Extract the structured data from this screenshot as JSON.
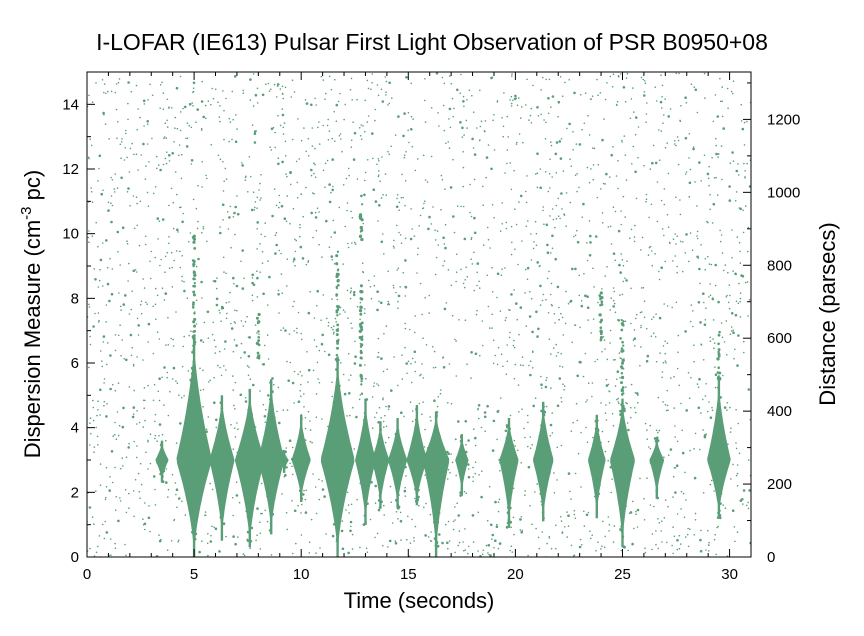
{
  "chart_data": {
    "type": "scatter",
    "title": "I-LOFAR (IE613) Pulsar First Light Observation of PSR B0950+08",
    "xlabel": "Time (seconds)",
    "ylabel_main": "Dispersion Measure (cm",
    "ylabel_sup": "-3",
    "ylabel_tail": " pc)",
    "y2label": "Distance (parsecs)",
    "xlim": [
      0,
      31
    ],
    "ylim": [
      0,
      15
    ],
    "y2lim": [
      0,
      1330
    ],
    "x_ticks": [
      "0",
      "5",
      "10",
      "15",
      "20",
      "25",
      "30"
    ],
    "y_ticks": [
      "0",
      "2",
      "4",
      "6",
      "8",
      "10",
      "12",
      "14"
    ],
    "y2_ticks": [
      "0",
      "200",
      "400",
      "600",
      "800",
      "1000",
      "1200"
    ],
    "grid": false,
    "marker_color": "#5a9e78",
    "series": [
      {
        "kind": "pulse_detections",
        "center_dm": 3.0,
        "pulses": [
          {
            "t": 3.5,
            "dm_lo": 2.3,
            "dm_hi": 3.6,
            "strength": 0.25
          },
          {
            "t": 5.0,
            "dm_lo": 0.0,
            "dm_hi": 6.8,
            "strength": 1.0
          },
          {
            "t": 6.3,
            "dm_lo": 0.5,
            "dm_hi": 5.0,
            "strength": 0.65
          },
          {
            "t": 7.6,
            "dm_lo": 0.3,
            "dm_hi": 5.2,
            "strength": 0.8
          },
          {
            "t": 8.6,
            "dm_lo": 0.7,
            "dm_hi": 5.5,
            "strength": 0.7
          },
          {
            "t": 9.2,
            "dm_lo": 2.6,
            "dm_hi": 3.3,
            "strength": 0.12
          },
          {
            "t": 10.0,
            "dm_lo": 1.7,
            "dm_hi": 4.4,
            "strength": 0.45
          },
          {
            "t": 11.7,
            "dm_lo": 0.0,
            "dm_hi": 6.2,
            "strength": 0.95
          },
          {
            "t": 13.0,
            "dm_lo": 1.0,
            "dm_hi": 4.9,
            "strength": 0.5
          },
          {
            "t": 13.7,
            "dm_lo": 1.5,
            "dm_hi": 4.2,
            "strength": 0.4
          },
          {
            "t": 14.5,
            "dm_lo": 1.5,
            "dm_hi": 4.3,
            "strength": 0.45
          },
          {
            "t": 15.4,
            "dm_lo": 1.6,
            "dm_hi": 4.7,
            "strength": 0.5
          },
          {
            "t": 16.3,
            "dm_lo": 0.0,
            "dm_hi": 4.5,
            "strength": 0.7
          },
          {
            "t": 17.5,
            "dm_lo": 1.9,
            "dm_hi": 3.8,
            "strength": 0.25
          },
          {
            "t": 19.7,
            "dm_lo": 0.9,
            "dm_hi": 4.3,
            "strength": 0.45
          },
          {
            "t": 21.3,
            "dm_lo": 1.1,
            "dm_hi": 4.8,
            "strength": 0.5
          },
          {
            "t": 23.8,
            "dm_lo": 1.2,
            "dm_hi": 4.4,
            "strength": 0.4
          },
          {
            "t": 25.0,
            "dm_lo": 0.3,
            "dm_hi": 4.9,
            "strength": 0.65
          },
          {
            "t": 26.6,
            "dm_lo": 1.8,
            "dm_hi": 3.7,
            "strength": 0.3
          },
          {
            "t": 29.5,
            "dm_lo": 1.2,
            "dm_hi": 5.5,
            "strength": 0.6
          }
        ]
      },
      {
        "kind": "vertical_streaks",
        "streaks": [
          {
            "t": 5.0,
            "dm_lo": 6.5,
            "dm_hi": 10.0
          },
          {
            "t": 11.7,
            "dm_lo": 6.0,
            "dm_hi": 9.5
          },
          {
            "t": 12.8,
            "dm_lo": 9.8,
            "dm_hi": 11.2
          },
          {
            "t": 12.8,
            "dm_lo": 5.0,
            "dm_hi": 8.5
          },
          {
            "t": 25.0,
            "dm_lo": 5.0,
            "dm_hi": 7.5
          },
          {
            "t": 29.5,
            "dm_lo": 5.5,
            "dm_hi": 7.0
          },
          {
            "t": 24.0,
            "dm_lo": 6.5,
            "dm_hi": 8.2
          },
          {
            "t": 8.0,
            "dm_lo": 6.0,
            "dm_hi": 7.5
          }
        ]
      },
      {
        "kind": "background_noise",
        "density": 3000
      }
    ]
  }
}
